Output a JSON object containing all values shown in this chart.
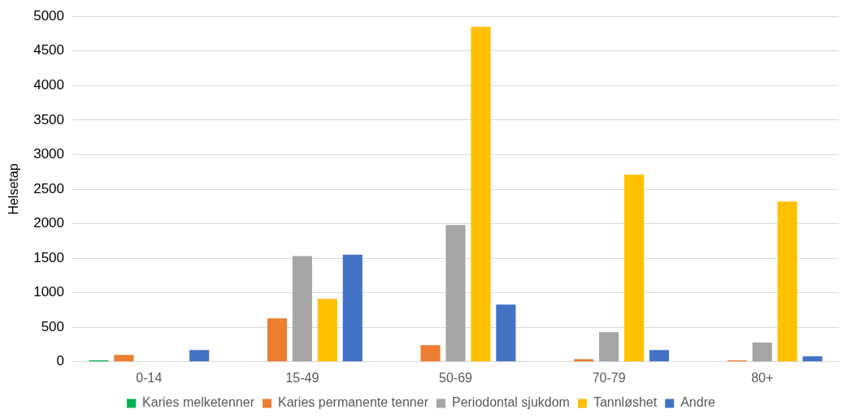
{
  "chart_data": {
    "type": "bar",
    "ylabel": "Helsetap",
    "categories": [
      "0-14",
      "15-49",
      "50-69",
      "70-79",
      "80+"
    ],
    "series": [
      {
        "name": "Karies melketenner",
        "color": "#00b050",
        "values": [
          20,
          0,
          0,
          0,
          0
        ]
      },
      {
        "name": "Karies permanente tenner",
        "color": "#ed7d31",
        "values": [
          100,
          630,
          240,
          40,
          20
        ]
      },
      {
        "name": "Periodontal sjukdom",
        "color": "#a5a5a5",
        "values": [
          0,
          1530,
          1980,
          430,
          280
        ]
      },
      {
        "name": "Tannløshet",
        "color": "#ffc000",
        "values": [
          0,
          910,
          4850,
          2710,
          2320
        ]
      },
      {
        "name": "Andre",
        "color": "#4472c4",
        "values": [
          170,
          1550,
          830,
          170,
          80
        ]
      }
    ],
    "ylim": [
      0,
      5000
    ],
    "yticks": [
      0,
      500,
      1000,
      1500,
      2000,
      2500,
      3000,
      3500,
      4000,
      4500,
      5000
    ],
    "grid": "y",
    "legend": "bottom"
  }
}
